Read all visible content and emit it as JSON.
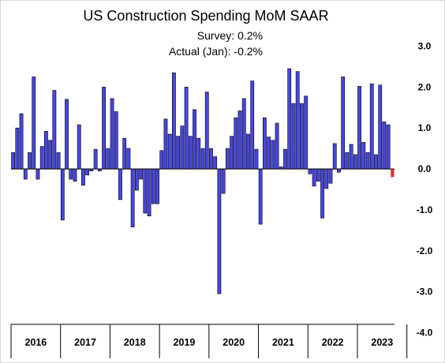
{
  "chart_data": {
    "type": "bar",
    "title": "US Construction Spending MoM SAAR",
    "annotations": [
      "Survey:  0.2%",
      "Actual (Jan):  -0.2%"
    ],
    "ylim": [
      -4.0,
      3.0
    ],
    "y_ticks": [
      3.0,
      2.0,
      1.0,
      0.0,
      -1.0,
      -2.0,
      -3.0,
      -4.0
    ],
    "y_tick_labels": [
      "3.0",
      "2.0",
      "1.0",
      "0.0",
      "-1.0",
      "-2.0",
      "-3.0",
      "-4.0"
    ],
    "y_axis_position": "right",
    "x_year_labels": [
      "2016",
      "2017",
      "2018",
      "2019",
      "2020",
      "2021",
      "2022",
      "2023"
    ],
    "bar_color": "#4646e6",
    "bar_edge_color": "#000000",
    "highlight_color": "#e03030",
    "grid": false,
    "series": [
      {
        "values": [
          0.4,
          1.0,
          1.35,
          -0.25,
          0.4,
          2.25,
          -0.25,
          0.55,
          0.92,
          0.7,
          1.92,
          0.4,
          -1.25,
          1.7,
          -0.25,
          -0.3,
          1.08,
          -0.4,
          -0.15,
          -0.05,
          0.48,
          -0.05,
          2.0,
          0.5,
          1.72,
          1.4,
          -0.75,
          0.75,
          0.5,
          -1.42,
          -0.52,
          -0.25,
          -1.08,
          -1.15,
          -0.85,
          -0.85,
          0.45,
          1.22,
          0.85,
          2.35,
          0.8,
          1.05,
          2.0,
          0.8,
          1.45,
          0.75,
          0.5,
          1.88,
          0.5,
          0.3,
          -3.05,
          -0.6,
          0.5,
          0.8,
          1.25,
          1.42,
          1.72,
          0.85,
          2.15,
          0.48,
          -1.35,
          1.25,
          0.78,
          0.7,
          1.12,
          0.05,
          0.48,
          2.45,
          1.6,
          2.38,
          1.6,
          1.78,
          -0.12,
          -0.42,
          -0.3,
          -1.2,
          -0.48,
          -0.35,
          0.62,
          -0.08,
          2.25,
          0.4,
          0.6,
          0.35,
          2.02,
          0.65,
          0.4,
          2.08,
          0.35,
          2.05,
          1.15,
          1.08,
          -0.2
        ]
      }
    ]
  }
}
